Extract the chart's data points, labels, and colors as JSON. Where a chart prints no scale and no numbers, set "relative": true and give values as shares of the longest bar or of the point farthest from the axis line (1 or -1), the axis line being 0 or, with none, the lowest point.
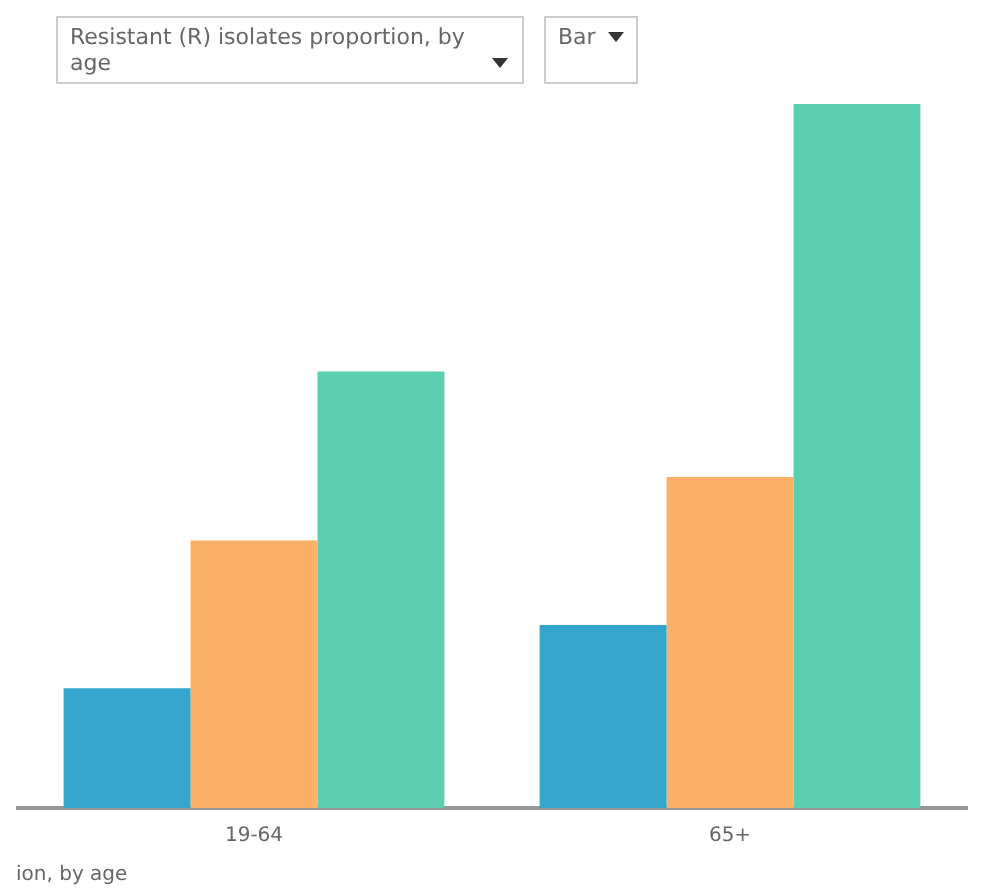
{
  "chart_data": {
    "type": "bar",
    "title": "Resistant (R) isolates proportion, by age",
    "annotations": [
      "Bar",
      "ion, by age"
    ],
    "categories": [
      "19-64",
      "65+"
    ],
    "relative": true,
    "legend": false,
    "grid": false,
    "series": [
      {
        "color": "#35a6cb",
        "values": [
          0.17,
          0.26
        ]
      },
      {
        "color": "#fbb068",
        "values": [
          0.38,
          0.47
        ]
      },
      {
        "color": "#5ccfb0",
        "values": [
          0.62,
          1
        ]
      }
    ]
  }
}
